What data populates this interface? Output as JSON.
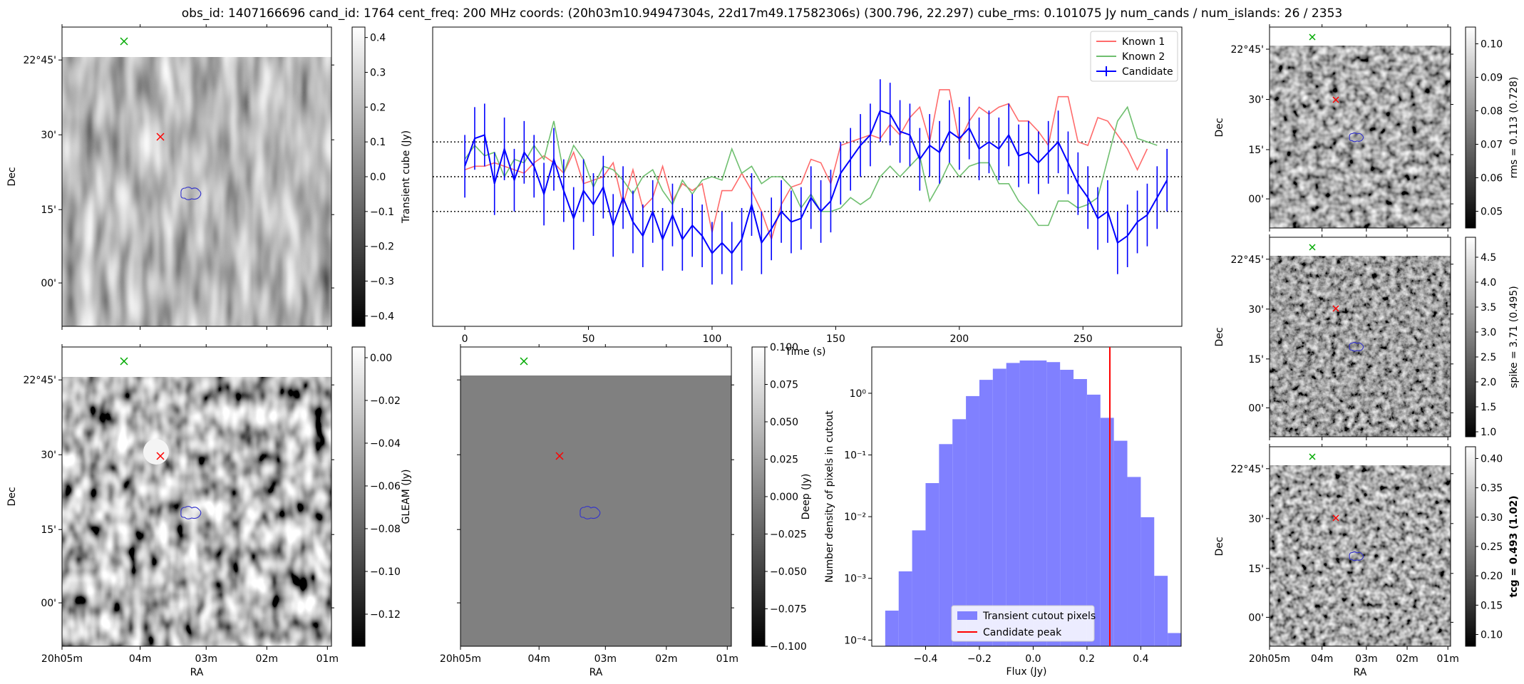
{
  "suptitle": "obs_id: 1407166696 cand_id: 1764 cent_freq: 200 MHz coords: (20h03m10.94947304s, 22d17m49.17582306s) (300.796, 22.297) cube_rms: 0.101075 Jy num_cands / num_islands: 26 / 2353",
  "colors": {
    "known1": "#ff6b6b",
    "known2": "#6fbf6f",
    "candidate": "#0000ff",
    "hist_fill": "#8080ff",
    "peak_line": "#ff0000",
    "marker_green": "#00aa00",
    "marker_red": "#ff0000",
    "contour": "#3333cc"
  },
  "image_axes": {
    "ra_ticks": [
      "20h05m",
      "04m",
      "03m",
      "02m",
      "01m"
    ],
    "dec_ticks": [
      "22°45'",
      "30'",
      "15'",
      "00'"
    ],
    "xlabel": "RA",
    "ylabel": "Dec"
  },
  "panels": [
    {
      "id": "transient",
      "colorbar_label": "Transient cube (Jy)",
      "ticks": [
        "0.4",
        "0.3",
        "0.2",
        "0.1",
        "0.0",
        "−0.1",
        "−0.2",
        "−0.3",
        "−0.4"
      ],
      "range": [
        -0.43,
        0.43
      ],
      "bold": false
    },
    {
      "id": "gleam",
      "colorbar_label": "GLEAM (Jy)",
      "ticks": [
        "0.00",
        "−0.02",
        "−0.04",
        "−0.06",
        "−0.08",
        "−0.10",
        "−0.12"
      ],
      "range": [
        -0.135,
        0.005
      ],
      "bold": false
    },
    {
      "id": "deep",
      "colorbar_label": "Deep (Jy)",
      "ticks": [
        "0.100",
        "0.075",
        "0.050",
        "0.025",
        "0.000",
        "−0.025",
        "−0.050",
        "−0.075",
        "−0.100"
      ],
      "range": [
        -0.1,
        0.1
      ],
      "bold": false
    },
    {
      "id": "rms",
      "colorbar_label": "rms = 0.113 (0.728)",
      "ticks": [
        "0.10",
        "0.09",
        "0.08",
        "0.07",
        "0.06",
        "0.05"
      ],
      "range": [
        0.045,
        0.105
      ],
      "bold": false
    },
    {
      "id": "spike",
      "colorbar_label": "spike = 3.71 (0.495)",
      "ticks": [
        "4.5",
        "4.0",
        "3.5",
        "3.0",
        "2.5",
        "2.0",
        "1.5",
        "1.0"
      ],
      "range": [
        0.9,
        4.9
      ],
      "bold": false
    },
    {
      "id": "tcg",
      "colorbar_label": "tcg = 0.493 (1.02)",
      "ticks": [
        "0.40",
        "0.35",
        "0.30",
        "0.25",
        "0.20",
        "0.15",
        "0.10"
      ],
      "range": [
        0.08,
        0.42
      ],
      "bold": true
    }
  ],
  "chart_data": [
    {
      "type": "line",
      "xlabel": "Time (s)",
      "ylabel": "",
      "xlim": [
        -13,
        290
      ],
      "ylim": [
        -0.43,
        0.43
      ],
      "x_ticks": [
        "0",
        "50",
        "100",
        "150",
        "200",
        "250"
      ],
      "reference_lines": [
        0.1,
        0.0,
        -0.1
      ],
      "legend_position": "top-right",
      "series": [
        {
          "name": "Known 1",
          "dx": 4,
          "values": [
            0.02,
            0.03,
            0.03,
            0.04,
            0.03,
            0.02,
            0.01,
            0.04,
            0.06,
            0.04,
            0.01,
            0.07,
            -0.02,
            -0.01,
            0.0,
            0.04,
            -0.08,
            0.02,
            -0.09,
            -0.06,
            0.03,
            -0.07,
            -0.02,
            -0.04,
            -0.02,
            -0.16,
            -0.04,
            -0.04,
            0.01,
            -0.04,
            -0.1,
            -0.18,
            -0.08,
            -0.03,
            -0.02,
            0.05,
            0.04,
            -0.02,
            0.09,
            0.1,
            0.11,
            0.12,
            0.11,
            0.15,
            0.12,
            0.17,
            0.2,
            0.1,
            0.25,
            0.25,
            0.1,
            0.16,
            0.2,
            0.18,
            0.2,
            0.21,
            0.16,
            0.16,
            0.13,
            0.09,
            0.23,
            0.23,
            0.1,
            0.09,
            0.17,
            0.16,
            0.12,
            0.08,
            0.02,
            0.08
          ]
        },
        {
          "name": "Known 2",
          "dx": 4,
          "values": [
            0.05,
            0.09,
            0.06,
            0.07,
            0.0,
            0.05,
            0.04,
            0.09,
            0.05,
            0.16,
            0.01,
            0.09,
            0.05,
            -0.03,
            0.03,
            0.02,
            -0.01,
            -0.05,
            0.0,
            0.02,
            -0.04,
            -0.08,
            -0.01,
            -0.05,
            -0.01,
            0.0,
            -0.01,
            0.08,
            0.01,
            0.03,
            -0.02,
            0.0,
            0.0,
            -0.03,
            -0.09,
            -0.05,
            -0.1,
            -0.1,
            -0.09,
            -0.06,
            -0.08,
            -0.06,
            0.0,
            0.03,
            0.0,
            0.03,
            0.06,
            -0.07,
            -0.02,
            0.04,
            0.0,
            0.03,
            0.04,
            0.04,
            -0.02,
            -0.02,
            -0.07,
            -0.1,
            -0.14,
            -0.14,
            -0.07,
            -0.07,
            -0.09,
            -0.08,
            -0.06,
            0.05,
            0.16,
            0.2,
            0.11,
            0.1,
            0.09
          ]
        },
        {
          "name": "Candidate",
          "dx": 4,
          "err": 0.09,
          "values": [
            0.03,
            0.11,
            0.12,
            -0.02,
            0.08,
            -0.01,
            0.07,
            0.03,
            -0.05,
            0.05,
            -0.04,
            -0.12,
            -0.04,
            -0.08,
            -0.03,
            -0.14,
            -0.06,
            -0.13,
            -0.17,
            -0.1,
            -0.18,
            -0.11,
            -0.18,
            -0.14,
            -0.17,
            -0.22,
            -0.19,
            -0.22,
            -0.18,
            -0.08,
            -0.19,
            -0.15,
            -0.1,
            -0.13,
            -0.12,
            -0.06,
            -0.1,
            -0.07,
            0.01,
            0.05,
            0.09,
            0.12,
            0.19,
            0.18,
            0.13,
            0.12,
            0.05,
            0.09,
            0.07,
            0.13,
            0.11,
            0.14,
            0.08,
            0.1,
            0.08,
            0.12,
            0.06,
            0.07,
            0.04,
            0.07,
            0.1,
            0.04,
            -0.02,
            -0.06,
            -0.12,
            -0.1,
            -0.19,
            -0.17,
            -0.13,
            -0.11,
            -0.06,
            -0.01
          ]
        }
      ]
    },
    {
      "type": "bar",
      "xlabel": "Flux (Jy)",
      "ylabel": "Number density of pixels in cutout",
      "xlim": [
        -0.6,
        0.55
      ],
      "ylog": true,
      "ylim_log10": [
        -4.1,
        0.75
      ],
      "x_ticks": [
        "−0.4",
        "−0.2",
        "0.0",
        "0.2",
        "0.4"
      ],
      "y_ticks": [
        "10⁰",
        "10⁻¹",
        "10⁻²",
        "10⁻³",
        "10⁻⁴"
      ],
      "legend_position": "bottom-right",
      "series": [
        {
          "name": "Transient cutout pixels",
          "bin_start": -0.55,
          "bin_width": 0.05,
          "values": [
            0.0003,
            0.0013,
            0.006,
            0.035,
            0.15,
            0.38,
            0.9,
            1.65,
            2.5,
            3.1,
            3.4,
            3.4,
            3.2,
            2.4,
            1.7,
            0.95,
            0.4,
            0.17,
            0.044,
            0.0098,
            0.0011,
            0.00013
          ]
        },
        {
          "name": "Candidate peak",
          "peak_x": 0.285
        }
      ]
    }
  ]
}
